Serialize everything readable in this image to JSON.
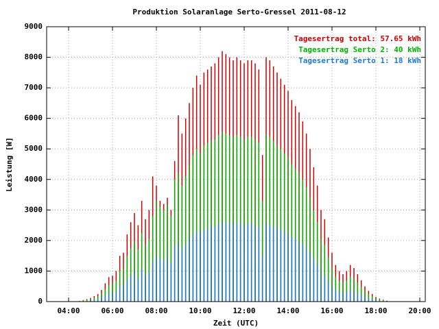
{
  "chart_data": {
    "type": "bar",
    "title": "Produktion Solaranlage Serto-Gressel 2011-08-12",
    "x_label": "Zeit (UTC)",
    "y_label": "Leistung [W]",
    "x": [
      "04:30",
      "04:40",
      "04:50",
      "05:00",
      "05:10",
      "05:20",
      "05:30",
      "05:40",
      "05:50",
      "06:00",
      "06:10",
      "06:20",
      "06:30",
      "06:40",
      "06:50",
      "07:00",
      "07:10",
      "07:20",
      "07:30",
      "07:40",
      "07:50",
      "08:00",
      "08:10",
      "08:20",
      "08:30",
      "08:40",
      "08:50",
      "09:00",
      "09:10",
      "09:20",
      "09:30",
      "09:40",
      "09:50",
      "10:00",
      "10:10",
      "10:20",
      "10:30",
      "10:40",
      "10:50",
      "11:00",
      "11:10",
      "11:20",
      "11:30",
      "11:40",
      "11:50",
      "12:00",
      "12:10",
      "12:20",
      "12:30",
      "12:40",
      "12:50",
      "13:00",
      "13:10",
      "13:20",
      "13:30",
      "13:40",
      "13:50",
      "14:00",
      "14:10",
      "14:20",
      "14:30",
      "14:40",
      "14:50",
      "15:00",
      "15:10",
      "15:20",
      "15:30",
      "15:40",
      "15:50",
      "16:00",
      "16:10",
      "16:20",
      "16:30",
      "16:40",
      "16:50",
      "17:00",
      "17:10",
      "17:20",
      "17:30",
      "17:40",
      "17:50",
      "18:00",
      "18:10",
      "18:20",
      "18:30",
      "18:40"
    ],
    "series": [
      {
        "name": "Tagesertrag total: 57.65 kWh",
        "color": "#cc0000",
        "values": [
          20,
          50,
          80,
          120,
          180,
          250,
          380,
          600,
          800,
          850,
          1000,
          1500,
          1600,
          2200,
          2600,
          2900,
          2500,
          3300,
          2700,
          3000,
          4100,
          3800,
          3300,
          3200,
          3400,
          3000,
          4600,
          6100,
          5500,
          6000,
          6500,
          7000,
          7400,
          7100,
          7500,
          7600,
          7700,
          7800,
          8000,
          8200,
          8100,
          8000,
          7900,
          8000,
          7900,
          7800,
          7900,
          7900,
          7800,
          7600,
          4800,
          8000,
          7900,
          7700,
          7500,
          7300,
          7100,
          6900,
          6600,
          6400,
          6200,
          5900,
          5500,
          5000,
          4400,
          3800,
          3000,
          2700,
          2100,
          1600,
          1200,
          1000,
          900,
          1000,
          1200,
          1100,
          900,
          700,
          500,
          350,
          250,
          150,
          100,
          60,
          30,
          10
        ]
      },
      {
        "name": "Tagesertrag Serto 2: 40 kWh",
        "color": "#00b000",
        "values": [
          14,
          35,
          55,
          80,
          120,
          170,
          260,
          410,
          540,
          580,
          680,
          1000,
          1080,
          1480,
          1750,
          1950,
          1700,
          2250,
          1850,
          2050,
          2800,
          3300,
          3100,
          3000,
          3150,
          2800,
          4000,
          4200,
          3800,
          4100,
          4450,
          4800,
          5000,
          4850,
          5100,
          5200,
          5250,
          5300,
          5450,
          5550,
          5500,
          5450,
          5400,
          5450,
          5400,
          5300,
          5400,
          5400,
          5300,
          5200,
          3300,
          5450,
          5400,
          5250,
          5100,
          5000,
          4850,
          4700,
          4500,
          4350,
          4200,
          4000,
          3750,
          3400,
          3000,
          2600,
          2050,
          1850,
          1450,
          1100,
          820,
          680,
          620,
          680,
          820,
          750,
          620,
          480,
          340,
          240,
          170,
          100,
          70,
          40,
          20,
          7
        ]
      },
      {
        "name": "Tagesertrag Serto 1: 18 kWh",
        "color": "#1e78d2",
        "values": [
          6,
          15,
          25,
          40,
          60,
          80,
          120,
          190,
          260,
          270,
          320,
          500,
          520,
          720,
          850,
          950,
          800,
          1050,
          850,
          950,
          1300,
          1500,
          1400,
          1350,
          1400,
          1250,
          1800,
          1900,
          1750,
          1900,
          2050,
          2200,
          2300,
          2250,
          2350,
          2400,
          2450,
          2450,
          2550,
          2600,
          2600,
          2550,
          2550,
          2550,
          2550,
          2500,
          2550,
          2550,
          2500,
          2450,
          1500,
          2550,
          2500,
          2450,
          2400,
          2350,
          2250,
          2200,
          2100,
          2050,
          1950,
          1900,
          1750,
          1600,
          1400,
          1200,
          950,
          850,
          650,
          500,
          380,
          320,
          280,
          320,
          380,
          350,
          280,
          220,
          160,
          110,
          80,
          50,
          30,
          20,
          10,
          3
        ]
      }
    ],
    "xlim": [
      "03:00",
      "20:15"
    ],
    "xticks": [
      "04:00",
      "06:00",
      "08:00",
      "10:00",
      "12:00",
      "14:00",
      "16:00",
      "18:00",
      "20:00"
    ],
    "ylim": [
      0,
      9000
    ],
    "yticks": [
      0,
      1000,
      2000,
      3000,
      4000,
      5000,
      6000,
      7000,
      8000,
      9000
    ],
    "grid": true,
    "legend": "top-right"
  }
}
